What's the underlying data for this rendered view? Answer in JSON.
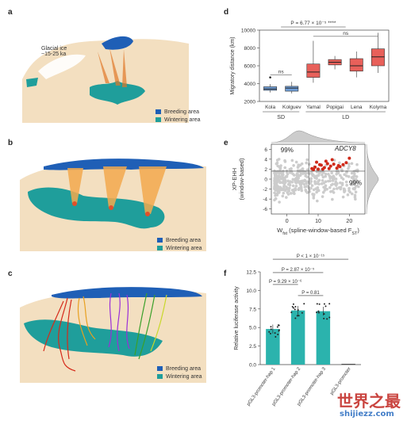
{
  "panels": {
    "a": {
      "label": "a",
      "ice_label_line1": "Glacial ice",
      "ice_label_line2": "~15-25 ka",
      "legend": [
        "Breeding area",
        "Wintering area"
      ]
    },
    "b": {
      "label": "b",
      "legend": [
        "Breeding area",
        "Wintering area"
      ]
    },
    "c": {
      "label": "c",
      "legend": [
        "Breeding area",
        "Wintering area"
      ]
    },
    "d": {
      "label": "d"
    },
    "e": {
      "label": "e"
    },
    "f": {
      "label": "f"
    }
  },
  "colors": {
    "breeding": "#1f5fb6",
    "wintering": "#1f9e9b",
    "land": "#f3dfc0",
    "ice": "#ffffff",
    "box_sd": "#6f9ed8",
    "box_ld": "#e8605a",
    "bar_teal": "#2bb3ad",
    "scatter_grey": "#cccccc",
    "scatter_red": "#cf2a1a"
  },
  "chart_data": [
    {
      "type": "box",
      "panel": "d",
      "ylabel": "Migratory distance (km)",
      "ylim": [
        2000,
        10000
      ],
      "yticks": [
        "2000",
        "4000",
        "6000",
        "8000",
        "10000"
      ],
      "categories": [
        "Kola",
        "Kolguev",
        "Yamal",
        "Popigai",
        "Lena",
        "Kolyma"
      ],
      "groups": [
        {
          "name": "SD",
          "members": [
            "Kola",
            "Kolguev"
          ]
        },
        {
          "name": "LD",
          "members": [
            "Yamal",
            "Popigai",
            "Lena",
            "Kolyma"
          ]
        }
      ],
      "boxes": [
        {
          "category": "Kola",
          "min": 3000,
          "q1": 3250,
          "median": 3400,
          "q3": 3650,
          "max": 3950,
          "outliers": [
            4700
          ]
        },
        {
          "category": "Kolguev",
          "min": 2900,
          "q1": 3150,
          "median": 3500,
          "q3": 3700,
          "max": 4200,
          "outliers": []
        },
        {
          "category": "Yamal",
          "min": 4100,
          "q1": 4700,
          "median": 5300,
          "q3": 6200,
          "max": 8800,
          "outliers": []
        },
        {
          "category": "Popigai",
          "min": 5600,
          "q1": 6100,
          "median": 6400,
          "q3": 6700,
          "max": 7100,
          "outliers": []
        },
        {
          "category": "Lena",
          "min": 4700,
          "q1": 5400,
          "median": 6000,
          "q3": 6800,
          "max": 7600,
          "outliers": []
        },
        {
          "category": "Kolyma",
          "min": 5200,
          "q1": 6000,
          "median": 7000,
          "q3": 7900,
          "max": 9700,
          "outliers": []
        }
      ],
      "annotations": [
        {
          "text": "P = 6.77 × 10⁻⁵ ****",
          "between": [
            "SD",
            "LD"
          ]
        },
        {
          "text": "ns",
          "between": [
            "Kola",
            "Kolguev"
          ]
        },
        {
          "text": "ns",
          "between": [
            "Yamal",
            "Kolyma"
          ]
        }
      ]
    },
    {
      "type": "scatter",
      "panel": "e",
      "xlabel": "W_fst (spline-window-based F_ST)",
      "xlabel_main": "W",
      "xlabel_sub": "fst",
      "xlabel_rest": " (spline-window-based F",
      "xlabel_sub2": "ST",
      "xlabel_end": ")",
      "ylabel_line1": "XP-EHH",
      "ylabel_line2": "(window-based)",
      "xlim": [
        -5,
        25
      ],
      "ylim": [
        -7,
        7
      ],
      "xticks": [
        "0",
        "10",
        "20"
      ],
      "yticks": [
        "6",
        "4",
        "2",
        "0",
        "-2",
        "-4",
        "-6"
      ],
      "threshold_x": 7,
      "threshold_y": 1.6,
      "labels": [
        "99%",
        "99%"
      ],
      "gene": "ADCY8",
      "highlight_points": [
        [
          8,
          2.1
        ],
        [
          9,
          2.4
        ],
        [
          10,
          2.0
        ],
        [
          11,
          2.8
        ],
        [
          12,
          2.3
        ],
        [
          13,
          3.1
        ],
        [
          9.5,
          3.4
        ],
        [
          14,
          2.6
        ],
        [
          15,
          3.0
        ],
        [
          16,
          2.2
        ],
        [
          10.5,
          2.9
        ],
        [
          12.5,
          3.6
        ],
        [
          17,
          2.5
        ],
        [
          8.5,
          1.9
        ],
        [
          13.5,
          2.1
        ],
        [
          18,
          2.9
        ],
        [
          11.5,
          2.0
        ],
        [
          19,
          3.3
        ],
        [
          14.5,
          3.9
        ],
        [
          16.5,
          2.7
        ],
        [
          20,
          4.2
        ]
      ]
    },
    {
      "type": "bar",
      "panel": "f",
      "ylabel": "Relative luciferase activity",
      "ylim": [
        0,
        12.5
      ],
      "yticks": [
        "0.0",
        "2.5",
        "5.0",
        "7.5",
        "10.0",
        "12.5"
      ],
      "categories": [
        "pGL3-promoter-hap 1",
        "pGL3-promoter-hap 2",
        "pGL3-promoter-hap 3",
        "pGL3-promoter"
      ],
      "values": [
        4.8,
        7.3,
        7.2,
        0.1
      ],
      "annotations": [
        {
          "text": "P < 1 × 10⁻¹⁵",
          "between": [
            "pGL3-promoter-hap 1",
            "pGL3-promoter"
          ]
        },
        {
          "text": "P = 2.87 × 10⁻⁵",
          "between": [
            "pGL3-promoter-hap 1",
            "pGL3-promoter-hap 3"
          ]
        },
        {
          "text": "P = 9.29 × 10⁻⁶",
          "between": [
            "pGL3-promoter-hap 1",
            "pGL3-promoter-hap 2"
          ]
        },
        {
          "text": "P = 0.81",
          "between": [
            "pGL3-promoter-hap 2",
            "pGL3-promoter-hap 3"
          ]
        }
      ]
    }
  ],
  "watermark": {
    "line1": "世界之最",
    "line2": "shijiezz.com"
  }
}
